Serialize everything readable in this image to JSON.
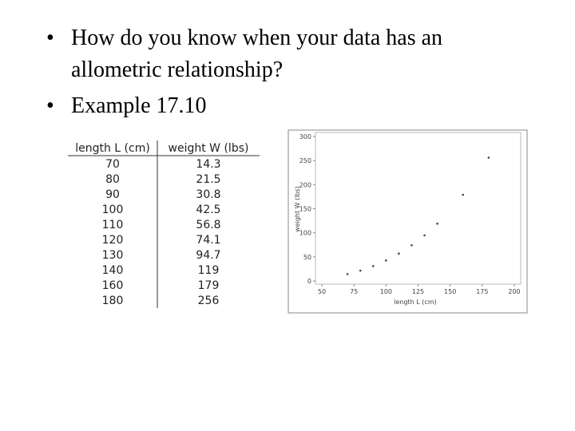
{
  "bullets": [
    "How do you know when your data has an allometric relationship?",
    "Example 17.10"
  ],
  "table": {
    "headers": [
      "length L (cm)",
      "weight W (lbs)"
    ],
    "rows": [
      [
        70,
        14.3
      ],
      [
        80,
        21.5
      ],
      [
        90,
        30.8
      ],
      [
        100,
        42.5
      ],
      [
        110,
        56.8
      ],
      [
        120,
        74.1
      ],
      [
        130,
        94.7
      ],
      [
        140,
        119
      ],
      [
        160,
        179
      ],
      [
        180,
        256
      ]
    ]
  },
  "chart_data": {
    "type": "scatter",
    "xlabel": "length L (cm)",
    "ylabel": "weight W (lbs)",
    "x": [
      70,
      80,
      90,
      100,
      110,
      120,
      130,
      140,
      160,
      180
    ],
    "values": [
      14.3,
      21.5,
      30.8,
      42.5,
      56.8,
      74.1,
      94.7,
      119,
      179,
      256
    ],
    "color": "#444444",
    "xlim": [
      50,
      200
    ],
    "xticks": [
      50,
      75,
      100,
      125,
      150,
      175,
      200
    ],
    "ylim": [
      0,
      300
    ],
    "yticks": [
      0,
      50,
      100,
      150,
      200,
      250,
      300
    ]
  }
}
